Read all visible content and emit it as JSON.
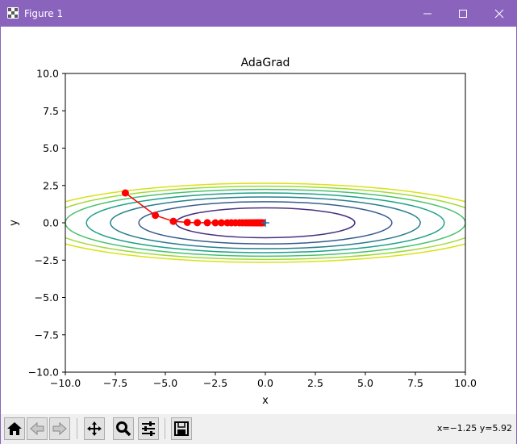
{
  "window": {
    "title": "Figure 1",
    "accent_color": "#8a63bd"
  },
  "titlebar_buttons": [
    {
      "name": "minimize-button",
      "icon": "minimize-icon"
    },
    {
      "name": "maximize-button",
      "icon": "maximize-icon"
    },
    {
      "name": "close-button",
      "icon": "close-icon"
    }
  ],
  "chart_data": {
    "type": "line",
    "title": "AdaGrad",
    "xlabel": "x",
    "ylabel": "y",
    "xlim": [
      -10,
      10
    ],
    "ylim": [
      -10,
      10
    ],
    "grid": false,
    "xticks": [
      -10,
      -7.5,
      -5,
      -2.5,
      0,
      2.5,
      5,
      7.5,
      10
    ],
    "yticks": [
      -10,
      -7.5,
      -5,
      -2.5,
      0,
      2.5,
      5,
      7.5,
      10
    ],
    "xtick_labels": [
      "−10.0",
      "−7.5",
      "−5.0",
      "−2.5",
      "0.0",
      "2.5",
      "5.0",
      "7.5",
      "10.0"
    ],
    "ytick_labels": [
      "−10.0",
      "−7.5",
      "−5.0",
      "−2.5",
      "0.0",
      "2.5",
      "5.0",
      "7.5",
      "10.0"
    ],
    "contours": {
      "function": "x^2/20 + y^2",
      "levels": [
        1,
        2,
        3,
        4,
        5,
        6,
        7
      ],
      "colors": [
        "#46307e",
        "#365c8d",
        "#277f8e",
        "#1fa187",
        "#4ac16d",
        "#a0da39",
        "#d8e219"
      ]
    },
    "path": {
      "color": "#ff0000",
      "marker": "o",
      "x": [
        -7.0,
        -5.5,
        -4.6,
        -3.9,
        -3.4,
        -2.9,
        -2.5,
        -2.2,
        -1.9,
        -1.7,
        -1.5,
        -1.3,
        -1.15,
        -1.0,
        -0.88,
        -0.77,
        -0.67,
        -0.58,
        -0.5,
        -0.43,
        -0.37,
        -0.31,
        -0.26,
        -0.21,
        -0.17,
        -0.13
      ],
      "y": [
        2.0,
        0.5,
        0.1,
        0.03,
        0.01,
        0.005,
        0,
        0,
        0,
        0,
        0,
        0,
        0,
        0,
        0,
        0,
        0,
        0,
        0,
        0,
        0,
        0,
        0,
        0,
        0,
        0
      ]
    },
    "minimum_marker": {
      "x": 0,
      "y": 0,
      "marker": "+",
      "color": "#1f77b4"
    }
  },
  "toolbar": {
    "buttons": [
      {
        "name": "home-button",
        "icon": "home-icon"
      },
      {
        "name": "back-button",
        "icon": "back-arrow-icon"
      },
      {
        "name": "forward-button",
        "icon": "forward-arrow-icon"
      },
      {
        "name": "pan-button",
        "icon": "move-icon"
      },
      {
        "name": "zoom-button",
        "icon": "zoom-icon"
      },
      {
        "name": "configure-subplots-button",
        "icon": "sliders-icon"
      },
      {
        "name": "save-button",
        "icon": "save-icon"
      }
    ],
    "coordinates": "x=−1.25 y=5.92"
  }
}
